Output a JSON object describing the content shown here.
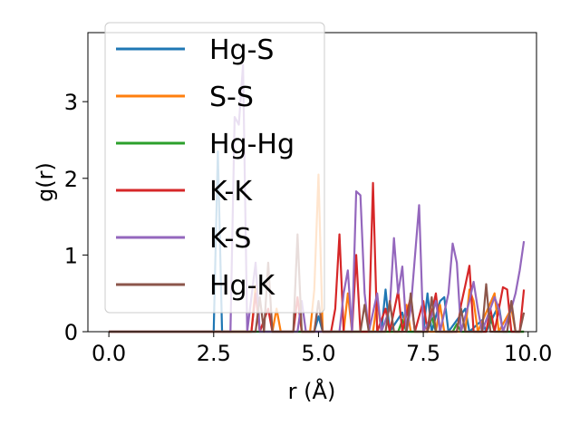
{
  "chart_data": {
    "type": "line",
    "title": "",
    "xlabel": "r (Å)",
    "ylabel": "g(r)",
    "xlim": [
      -0.5,
      10.2
    ],
    "ylim": [
      0,
      3.9
    ],
    "xticks": [
      0.0,
      2.5,
      5.0,
      7.5,
      10.0
    ],
    "xtick_labels": [
      "0.0",
      "2.5",
      "5.0",
      "7.5",
      "10.0"
    ],
    "yticks": [
      0,
      1,
      2,
      3
    ],
    "ytick_labels": [
      "0",
      "1",
      "2",
      "3"
    ],
    "grid": false,
    "legend_position": "top-left",
    "series": [
      {
        "name": "Hg-S",
        "color": "#1f77b4",
        "points": [
          [
            0,
            0
          ],
          [
            2.5,
            0
          ],
          [
            2.6,
            2.35
          ],
          [
            2.7,
            0
          ],
          [
            4.9,
            0
          ],
          [
            5.0,
            0.2
          ],
          [
            5.1,
            0
          ],
          [
            6.5,
            0
          ],
          [
            6.6,
            0.55
          ],
          [
            6.7,
            0
          ],
          [
            7.0,
            0.25
          ],
          [
            7.1,
            0
          ],
          [
            7.5,
            0
          ],
          [
            7.6,
            0.5
          ],
          [
            7.7,
            0
          ],
          [
            7.9,
            0.4
          ],
          [
            8.0,
            0.45
          ],
          [
            8.1,
            0
          ],
          [
            8.5,
            0.3
          ],
          [
            8.6,
            0
          ],
          [
            8.9,
            0.15
          ],
          [
            9.0,
            0
          ],
          [
            9.3,
            0.35
          ],
          [
            9.4,
            0
          ],
          [
            9.9,
            0
          ]
        ]
      },
      {
        "name": "S-S",
        "color": "#ff7f0e",
        "points": [
          [
            0,
            0
          ],
          [
            3.4,
            0
          ],
          [
            3.5,
            0.6
          ],
          [
            3.6,
            0
          ],
          [
            3.9,
            0
          ],
          [
            4.0,
            0.3
          ],
          [
            4.1,
            0
          ],
          [
            4.8,
            0
          ],
          [
            4.9,
            0.55
          ],
          [
            5.0,
            2.05
          ],
          [
            5.1,
            0
          ],
          [
            5.6,
            0
          ],
          [
            5.7,
            0.5
          ],
          [
            5.8,
            0
          ],
          [
            6.3,
            0
          ],
          [
            6.4,
            0.4
          ],
          [
            6.5,
            0
          ],
          [
            7.0,
            0
          ],
          [
            7.1,
            0.35
          ],
          [
            7.2,
            0
          ],
          [
            7.8,
            0
          ],
          [
            7.9,
            0.35
          ],
          [
            8.0,
            0
          ],
          [
            8.5,
            0
          ],
          [
            8.6,
            0.55
          ],
          [
            8.7,
            0.4
          ],
          [
            8.8,
            0
          ],
          [
            9.2,
            0.5
          ],
          [
            9.3,
            0
          ],
          [
            9.6,
            0.3
          ],
          [
            9.7,
            0
          ],
          [
            9.9,
            0
          ]
        ]
      },
      {
        "name": "Hg-Hg",
        "color": "#2ca02c",
        "points": [
          [
            0,
            0
          ],
          [
            6.9,
            0
          ],
          [
            7.0,
            0.15
          ],
          [
            7.1,
            0
          ],
          [
            7.6,
            0
          ],
          [
            7.7,
            0.2
          ],
          [
            7.8,
            0
          ],
          [
            8.2,
            0
          ],
          [
            8.3,
            0.1
          ],
          [
            8.4,
            0
          ],
          [
            9.0,
            0
          ],
          [
            9.1,
            0.2
          ],
          [
            9.2,
            0
          ],
          [
            9.9,
            0
          ]
        ]
      },
      {
        "name": "K-K",
        "color": "#d62728",
        "points": [
          [
            0,
            0
          ],
          [
            3.4,
            0
          ],
          [
            3.5,
            0.5
          ],
          [
            3.6,
            0
          ],
          [
            3.8,
            0.3
          ],
          [
            3.9,
            0
          ],
          [
            4.4,
            0
          ],
          [
            4.5,
            0.45
          ],
          [
            4.6,
            0
          ],
          [
            5.3,
            0
          ],
          [
            5.4,
            0.3
          ],
          [
            5.5,
            1.27
          ],
          [
            5.6,
            0
          ],
          [
            5.8,
            0
          ],
          [
            5.9,
            1.0
          ],
          [
            6.0,
            0
          ],
          [
            6.2,
            0
          ],
          [
            6.3,
            1.94
          ],
          [
            6.4,
            0
          ],
          [
            6.6,
            0.3
          ],
          [
            6.7,
            0
          ],
          [
            6.9,
            0.53
          ],
          [
            7.0,
            0
          ],
          [
            7.2,
            0.45
          ],
          [
            7.3,
            0
          ],
          [
            7.5,
            0.4
          ],
          [
            7.6,
            0
          ],
          [
            7.8,
            0.5
          ],
          [
            7.9,
            0
          ],
          [
            8.3,
            0
          ],
          [
            8.4,
            0.35
          ],
          [
            8.5,
            0.6
          ],
          [
            8.6,
            0.86
          ],
          [
            8.7,
            0
          ],
          [
            9.0,
            0
          ],
          [
            9.1,
            0.3
          ],
          [
            9.2,
            0
          ],
          [
            9.4,
            0.58
          ],
          [
            9.5,
            0.55
          ],
          [
            9.6,
            0
          ],
          [
            9.8,
            0
          ],
          [
            9.9,
            0.55
          ]
        ]
      },
      {
        "name": "K-S",
        "color": "#9467bd",
        "points": [
          [
            0,
            0
          ],
          [
            2.9,
            0
          ],
          [
            3.0,
            2.8
          ],
          [
            3.1,
            2.7
          ],
          [
            3.2,
            3.48
          ],
          [
            3.3,
            0
          ],
          [
            3.5,
            0.9
          ],
          [
            3.6,
            0
          ],
          [
            4.5,
            0
          ],
          [
            4.6,
            0.4
          ],
          [
            4.7,
            0
          ],
          [
            5.5,
            0
          ],
          [
            5.6,
            0.5
          ],
          [
            5.7,
            0.8
          ],
          [
            5.8,
            0
          ],
          [
            5.9,
            1.83
          ],
          [
            6.0,
            1.78
          ],
          [
            6.1,
            0.5
          ],
          [
            6.2,
            0
          ],
          [
            6.4,
            0.5
          ],
          [
            6.5,
            0
          ],
          [
            6.7,
            0.3
          ],
          [
            6.8,
            1.22
          ],
          [
            6.9,
            0.5
          ],
          [
            7.0,
            0.85
          ],
          [
            7.1,
            0
          ],
          [
            7.2,
            0.3
          ],
          [
            7.4,
            1.65
          ],
          [
            7.5,
            0
          ],
          [
            7.7,
            0.2
          ],
          [
            7.8,
            0.4
          ],
          [
            7.9,
            0
          ],
          [
            8.1,
            0.5
          ],
          [
            8.2,
            1.15
          ],
          [
            8.3,
            0.9
          ],
          [
            8.4,
            0
          ],
          [
            8.6,
            0.4
          ],
          [
            8.7,
            0.65
          ],
          [
            8.8,
            0.3
          ],
          [
            8.9,
            0
          ],
          [
            9.2,
            0.45
          ],
          [
            9.3,
            0.3
          ],
          [
            9.4,
            0
          ],
          [
            9.6,
            0.3
          ],
          [
            9.7,
            0.5
          ],
          [
            9.8,
            0.8
          ],
          [
            9.9,
            1.18
          ]
        ]
      },
      {
        "name": "Hg-K",
        "color": "#8c564b",
        "points": [
          [
            0,
            0
          ],
          [
            3.5,
            0
          ],
          [
            3.6,
            0.45
          ],
          [
            3.7,
            0
          ],
          [
            3.8,
            0.9
          ],
          [
            3.9,
            0
          ],
          [
            4.4,
            0
          ],
          [
            4.5,
            1.27
          ],
          [
            4.6,
            0
          ],
          [
            4.9,
            0
          ],
          [
            5.0,
            0.4
          ],
          [
            5.1,
            0
          ],
          [
            6.0,
            0
          ],
          [
            6.1,
            0.35
          ],
          [
            6.2,
            0
          ],
          [
            6.6,
            0
          ],
          [
            6.7,
            0.4
          ],
          [
            6.8,
            0
          ],
          [
            7.1,
            0
          ],
          [
            7.2,
            0.5
          ],
          [
            7.3,
            0
          ],
          [
            7.6,
            0
          ],
          [
            7.7,
            0.45
          ],
          [
            7.8,
            0
          ],
          [
            8.3,
            0
          ],
          [
            8.4,
            0.3
          ],
          [
            8.5,
            0
          ],
          [
            8.9,
            0
          ],
          [
            9.0,
            0.62
          ],
          [
            9.1,
            0
          ],
          [
            9.5,
            0
          ],
          [
            9.6,
            0.4
          ],
          [
            9.7,
            0
          ],
          [
            9.8,
            0
          ],
          [
            9.9,
            0.25
          ]
        ]
      }
    ]
  }
}
